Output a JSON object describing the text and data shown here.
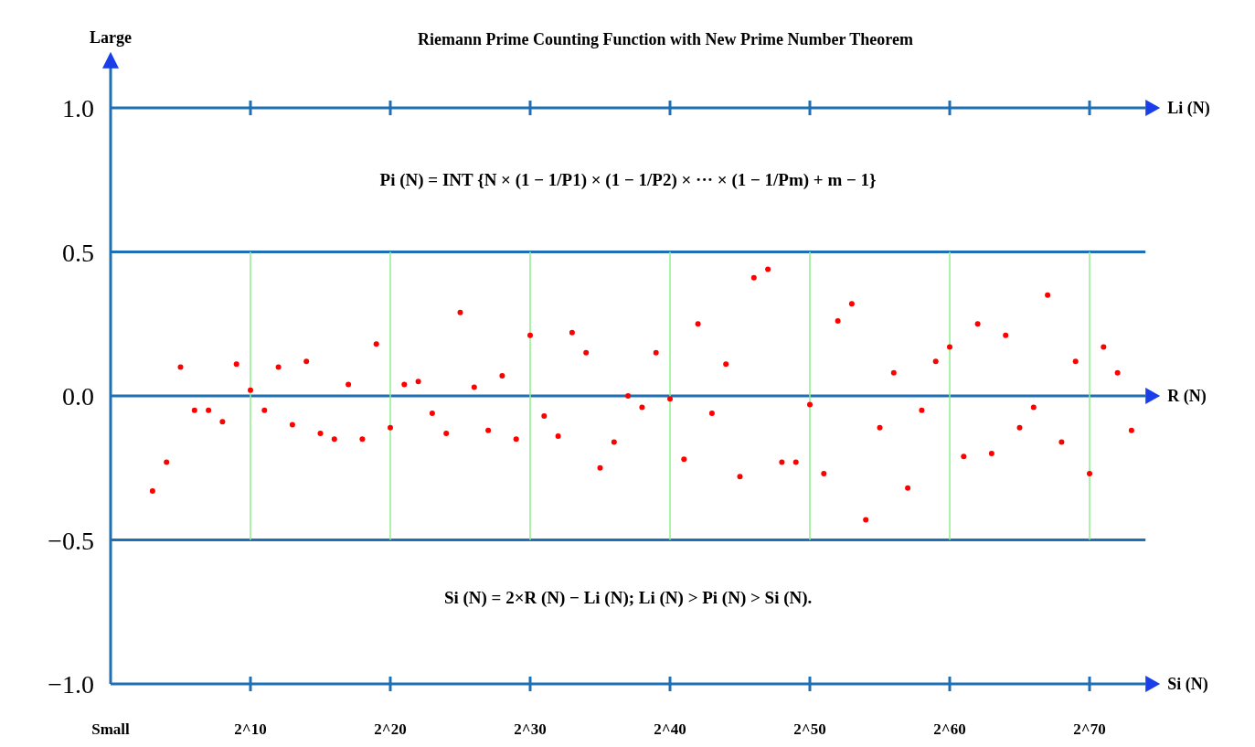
{
  "chart_data": {
    "type": "scatter",
    "title": "Riemann Prime Counting Function with New Prime Number Theorem",
    "ylabel": "Large",
    "categories": [
      "Small",
      null,
      null,
      null,
      null,
      null,
      null,
      null,
      null,
      null,
      "2^10",
      null,
      null,
      null,
      null,
      null,
      null,
      null,
      null,
      null,
      "2^20",
      null,
      null,
      null,
      null,
      null,
      null,
      null,
      null,
      null,
      "2^30",
      null,
      null,
      null,
      null,
      null,
      null,
      null,
      null,
      null,
      "2^40",
      null,
      null,
      null,
      null,
      null,
      null,
      null,
      null,
      null,
      "2^50",
      null,
      null,
      null,
      null,
      null,
      null,
      null,
      null,
      null,
      "2^60",
      null,
      null,
      null,
      null,
      null,
      null,
      null,
      null,
      null,
      "2^70",
      null,
      null,
      null
    ],
    "series": [
      {
        "color": "#ff0000",
        "values": [
          null,
          null,
          null,
          -0.33,
          -0.23,
          0.1,
          -0.05,
          -0.05,
          -0.09,
          0.11,
          0.02,
          -0.05,
          0.1,
          -0.1,
          0.12,
          -0.13,
          -0.15,
          0.04,
          -0.15,
          0.18,
          -0.11,
          0.04,
          0.05,
          -0.06,
          -0.13,
          0.29,
          0.03,
          -0.12,
          0.07,
          -0.15,
          0.21,
          -0.07,
          -0.14,
          0.22,
          0.15,
          -0.25,
          -0.16,
          0.0,
          -0.04,
          0.15,
          -0.01,
          -0.22,
          0.25,
          -0.06,
          0.11,
          -0.28,
          0.41,
          0.44,
          -0.23,
          -0.23,
          -0.03,
          -0.27,
          0.26,
          0.32,
          -0.43,
          -0.11,
          0.08,
          -0.32,
          -0.05,
          0.12,
          0.17,
          -0.21,
          0.25,
          -0.2,
          0.21,
          -0.11,
          -0.04,
          0.35,
          -0.16,
          0.12,
          -0.27,
          0.17,
          0.08,
          -0.12
        ]
      }
    ],
    "ylim": [
      -1,
      1.15
    ],
    "yticks": [
      {
        "value": -1,
        "label": "−1.0"
      },
      {
        "value": -0.5,
        "label": "−0.5"
      },
      {
        "value": 0,
        "label": "0.0"
      },
      {
        "value": 0.5,
        "label": "0.5"
      },
      {
        "value": 1,
        "label": "1.0"
      }
    ],
    "grid": "y",
    "marker": "circle",
    "ref_lines": [
      {
        "axis": "x",
        "value": "2^10",
        "color": "#90ee90"
      },
      {
        "axis": "x",
        "value": "2^20",
        "color": "#90ee90"
      },
      {
        "axis": "x",
        "value": "2^30",
        "color": "#90ee90"
      },
      {
        "axis": "x",
        "value": "2^40",
        "color": "#90ee90"
      },
      {
        "axis": "x",
        "value": "2^50",
        "color": "#90ee90"
      },
      {
        "axis": "x",
        "value": "2^60",
        "color": "#90ee90"
      },
      {
        "axis": "x",
        "value": "2^70",
        "color": "#90ee90"
      }
    ],
    "annotations": [
      "Pi (N) = INT {N × (1 − 1/P1) × (1 − 1/P2) × ··· × (1 − 1/Pm) + m − 1}",
      "Si (N) = 2×R (N) − Li (N);  Li (N)  >  Pi (N)  >  Si (N).",
      "Li (N)",
      "R (N)",
      "Si (N)"
    ]
  }
}
